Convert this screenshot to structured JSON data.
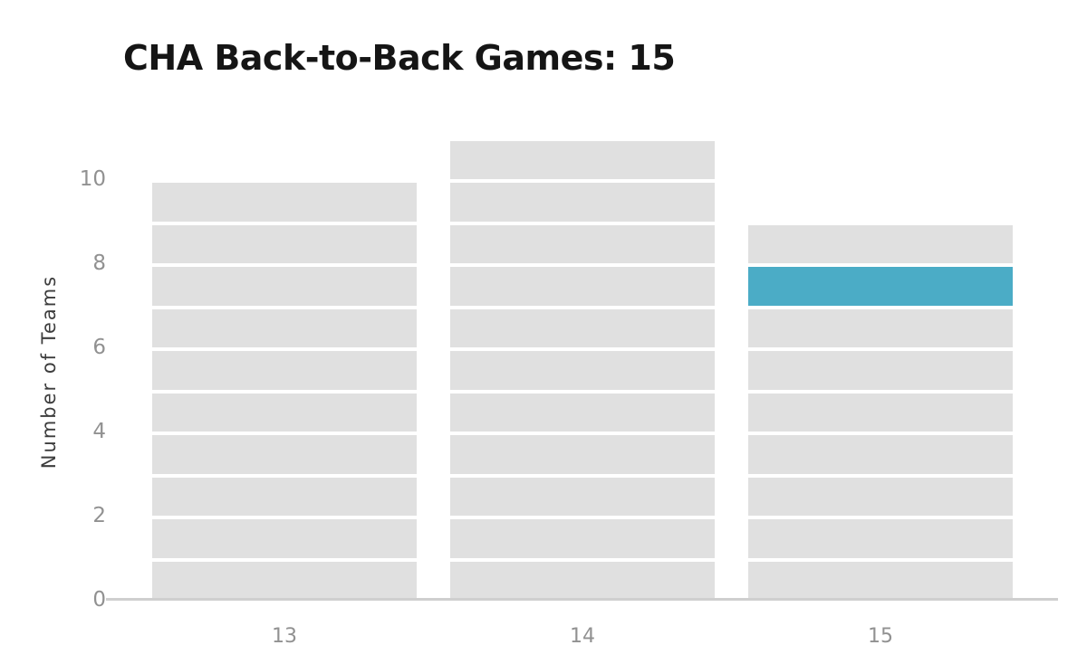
{
  "chart_data": {
    "type": "bar",
    "title": "CHA Back-to-Back Games: 15",
    "ylabel": "Number of Teams",
    "xlabel": "",
    "categories": [
      "13",
      "14",
      "15"
    ],
    "values": [
      10,
      11,
      9
    ],
    "series": [
      {
        "name": "13",
        "total": 10,
        "highlight_block": null
      },
      {
        "name": "14",
        "total": 11,
        "highlight_block": null
      },
      {
        "name": "15",
        "total": 9,
        "highlight_block": 8
      }
    ],
    "unit_stacked_blocks": true,
    "highlight_note": "blue block on bar 15 spans from 7 to 8 teams",
    "yticks": [
      0,
      2,
      4,
      6,
      8,
      10
    ],
    "ylim": [
      0,
      11
    ],
    "grid": "none",
    "legend": "none",
    "colors": {
      "block": "#e0e0e0",
      "block_gap": "#ffffff",
      "highlight": "#4bacc6",
      "axis_line": "#cfcfcf",
      "tick_text": "#919191",
      "title_text": "#151515",
      "ylabel_text": "#3d3d3d",
      "background": "#ffffff"
    }
  }
}
